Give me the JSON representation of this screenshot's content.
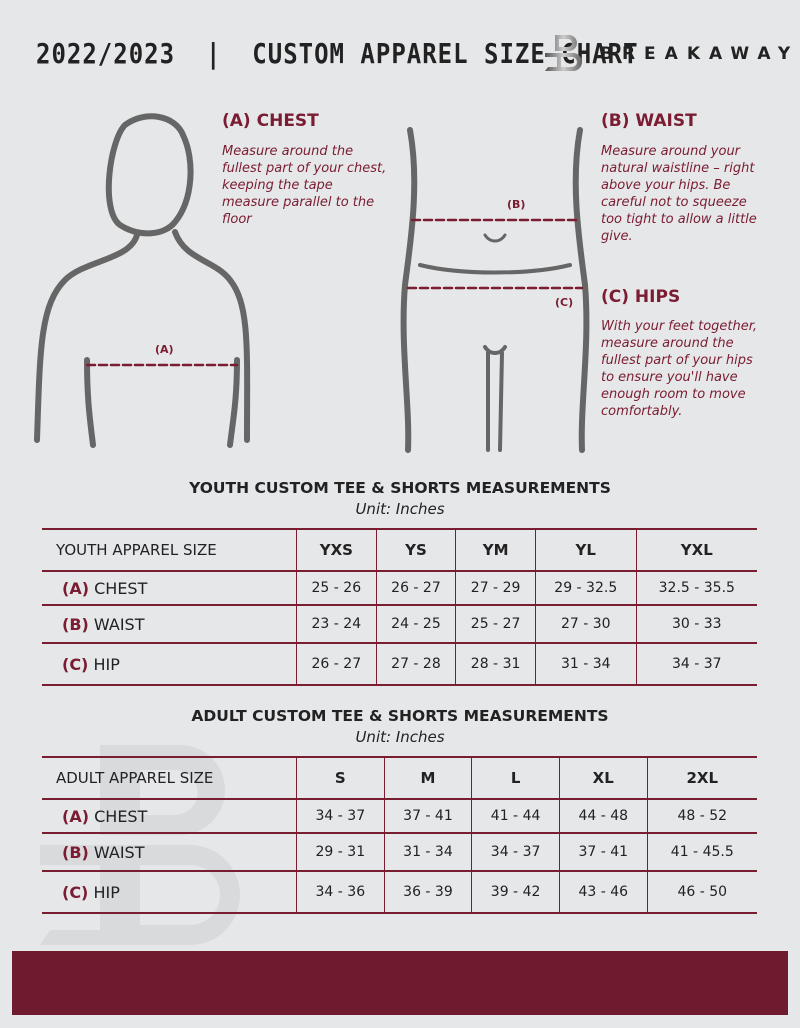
{
  "header": {
    "title": "2022/2023  |  CUSTOM APPAREL SIZE CHART",
    "brand": "BREAKAWAY"
  },
  "colors": {
    "accent": "#7a1c32",
    "background": "#e6e7e9"
  },
  "chest": {
    "heading": "(A) CHEST",
    "description": "Measure around the fullest part of your chest, keeping the tape measure parallel to the floor",
    "marker": "(A)"
  },
  "waist": {
    "heading": "(B) WAIST",
    "description": "Measure around your natural waistline – right above your hips. Be careful not to squeeze too tight to allow a little give.",
    "marker": "(B)"
  },
  "hips": {
    "heading": "(C) HIPS",
    "description": "With your feet together, measure around the fullest part of your hips to ensure you'll have enough room to move comfortably.",
    "marker": "(C)"
  },
  "youth": {
    "title": "YOUTH CUSTOM TEE & SHORTS MEASUREMENTS",
    "unit": "Unit: Inches",
    "size_label": "YOUTH APPAREL SIZE",
    "sizes": [
      "YXS",
      "YS",
      "YM",
      "YL",
      "YXL"
    ],
    "rows": [
      {
        "letter": "(A)",
        "name": "CHEST",
        "values": [
          "25 - 26",
          "26 - 27",
          "27 - 29",
          "29 - 32.5",
          "32.5 - 35.5"
        ]
      },
      {
        "letter": "(B)",
        "name": "WAIST",
        "values": [
          "23 - 24",
          "24 - 25",
          "25 - 27",
          "27 - 30",
          "30 - 33"
        ]
      },
      {
        "letter": "(C)",
        "name": "HIP",
        "values": [
          "26 - 27",
          "27 - 28",
          "28 - 31",
          "31 - 34",
          "34 - 37"
        ]
      }
    ]
  },
  "adult": {
    "title": "ADULT CUSTOM TEE & SHORTS MEASUREMENTS",
    "unit": "Unit: Inches",
    "size_label": "ADULT APPAREL SIZE",
    "sizes": [
      "S",
      "M",
      "L",
      "XL",
      "2XL"
    ],
    "rows": [
      {
        "letter": "(A)",
        "name": "CHEST",
        "values": [
          "34 - 37",
          "37 - 41",
          "41 - 44",
          "44 - 48",
          "48 - 52"
        ]
      },
      {
        "letter": "(B)",
        "name": "WAIST",
        "values": [
          "29 - 31",
          "31 - 34",
          "34 - 37",
          "37 - 41",
          "41 - 45.5"
        ]
      },
      {
        "letter": "(C)",
        "name": "HIP",
        "values": [
          "34 - 36",
          "36 - 39",
          "39 - 42",
          "43 - 46",
          "46 - 50"
        ]
      }
    ]
  }
}
